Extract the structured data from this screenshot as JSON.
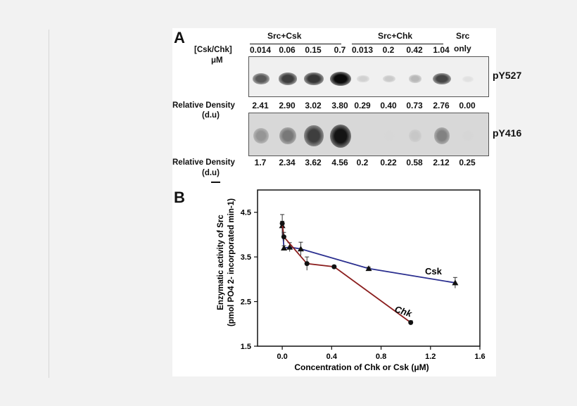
{
  "panelA": {
    "letter": "A",
    "group1": "Src+Csk",
    "group2": "Src+Chk",
    "group3_line1": "Src",
    "group3_line2": "only",
    "conc_label_line1": "[Csk/Chk]",
    "conc_label_line2": "μM",
    "concentrations": [
      "0.014",
      "0.06",
      "0.15",
      "0.7",
      "0.013",
      "0.2",
      "0.42",
      "1.04"
    ],
    "blot1_label": "pY527",
    "blot2_label": "pY416",
    "density_label_line1": "Relative Density",
    "density_label_line2": "(d.u)",
    "density_pY527": [
      "2.41",
      "2.90",
      "3.02",
      "3.80",
      "0.29",
      "0.40",
      "0.73",
      "2.76",
      "0.00"
    ],
    "density_pY416": [
      "1.7",
      "2.34",
      "3.62",
      "4.56",
      "0.2",
      "0.22",
      "0.58",
      "2.12",
      "0.25"
    ]
  },
  "panelB": {
    "letter": "B"
  },
  "chart_data": {
    "type": "line",
    "xlabel": "Concentration of Chk or Csk (μM)",
    "ylabel_line1": "Enzymatic activity of Src",
    "ylabel_line2": "(pmol PO4 2- incorporated min-1)",
    "xlim": [
      -0.2,
      1.6
    ],
    "ylim": [
      1.5,
      5.0
    ],
    "x_ticks": [
      "0.0",
      "0.4",
      "0.8",
      "1.2",
      "1.6"
    ],
    "y_ticks": [
      "1.5",
      "2.5",
      "3.5",
      "4.5"
    ],
    "series": [
      {
        "name": "Csk",
        "color": "#2b2f8f",
        "marker": "triangle",
        "x": [
          0,
          0.014,
          0.06,
          0.15,
          0.7,
          1.4
        ],
        "y": [
          4.2,
          3.7,
          3.72,
          3.68,
          3.24,
          2.92
        ],
        "err": [
          0.25,
          0.05,
          0.1,
          0.15,
          0.03,
          0.12
        ]
      },
      {
        "name": "Chk",
        "color": "#8b1e1e",
        "marker": "circle",
        "x": [
          0,
          0.013,
          0.2,
          0.42,
          1.04
        ],
        "y": [
          4.25,
          3.95,
          3.35,
          3.28,
          2.03
        ],
        "err": [
          0.05,
          0.1,
          0.15,
          0.03,
          0.04
        ]
      }
    ]
  }
}
